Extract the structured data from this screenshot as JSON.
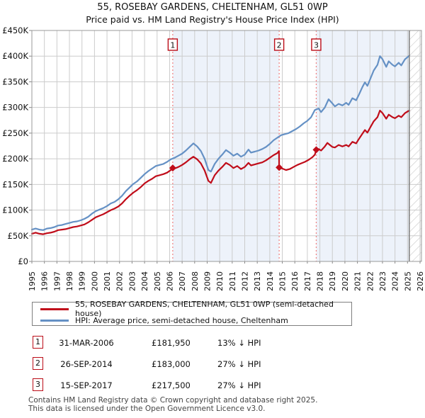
{
  "title": "55, ROSEBAY GARDENS, CHELTENHAM, GL51 0WP",
  "subtitle": "Price paid vs. HM Land Registry's House Price Index (HPI)",
  "chart_data": {
    "type": "line",
    "x_axis": {
      "start": 1995,
      "end": 2026,
      "tick_labels": [
        "1995",
        "1996",
        "1997",
        "1998",
        "1999",
        "2000",
        "2001",
        "2002",
        "2003",
        "2004",
        "2005",
        "2006",
        "2007",
        "2008",
        "2009",
        "2010",
        "2011",
        "2012",
        "2013",
        "2014",
        "2015",
        "2016",
        "2017",
        "2018",
        "2019",
        "2020",
        "2021",
        "2022",
        "2023",
        "2024",
        "2025",
        "2026"
      ]
    },
    "y_axis": {
      "max": 450,
      "tick_values": [
        0,
        50,
        100,
        150,
        200,
        250,
        300,
        350,
        400,
        450
      ],
      "tick_labels": [
        "£0",
        "£50K",
        "£100K",
        "£150K",
        "£200K",
        "£250K",
        "£300K",
        "£350K",
        "£400K",
        "£450K"
      ]
    },
    "grid": true,
    "legend_position": "bottom",
    "series": [
      {
        "name": "55, ROSEBAY GARDENS, CHELTENHAM, GL51 0WP (semi-detached house)",
        "color": "#c00d1a",
        "points": [
          [
            1995.0,
            54
          ],
          [
            1995.3,
            56
          ],
          [
            1995.6,
            54
          ],
          [
            1995.9,
            53
          ],
          [
            1996.2,
            55
          ],
          [
            1996.5,
            56
          ],
          [
            1996.8,
            58
          ],
          [
            1997.1,
            61
          ],
          [
            1997.4,
            62
          ],
          [
            1997.7,
            63
          ],
          [
            1998.0,
            65
          ],
          [
            1998.3,
            67
          ],
          [
            1998.6,
            68
          ],
          [
            1998.9,
            70
          ],
          [
            1999.2,
            72
          ],
          [
            1999.5,
            76
          ],
          [
            1999.8,
            81
          ],
          [
            2000.1,
            86
          ],
          [
            2000.4,
            89
          ],
          [
            2000.7,
            92
          ],
          [
            2001.0,
            96
          ],
          [
            2001.3,
            100
          ],
          [
            2001.6,
            103
          ],
          [
            2001.9,
            107
          ],
          [
            2002.2,
            113
          ],
          [
            2002.5,
            121
          ],
          [
            2002.8,
            128
          ],
          [
            2003.1,
            134
          ],
          [
            2003.4,
            139
          ],
          [
            2003.7,
            145
          ],
          [
            2004.0,
            152
          ],
          [
            2004.3,
            157
          ],
          [
            2004.6,
            161
          ],
          [
            2004.9,
            166
          ],
          [
            2005.2,
            168
          ],
          [
            2005.5,
            170
          ],
          [
            2005.8,
            173
          ],
          [
            2006.1,
            178
          ],
          [
            2006.25,
            182
          ],
          [
            2006.4,
            181
          ],
          [
            2006.7,
            184
          ],
          [
            2007.0,
            188
          ],
          [
            2007.3,
            193
          ],
          [
            2007.6,
            199
          ],
          [
            2007.9,
            204
          ],
          [
            2008.2,
            199
          ],
          [
            2008.5,
            191
          ],
          [
            2008.8,
            177
          ],
          [
            2009.1,
            157
          ],
          [
            2009.3,
            153
          ],
          [
            2009.6,
            168
          ],
          [
            2009.9,
            177
          ],
          [
            2010.2,
            184
          ],
          [
            2010.5,
            192
          ],
          [
            2010.8,
            188
          ],
          [
            2011.1,
            182
          ],
          [
            2011.4,
            186
          ],
          [
            2011.7,
            180
          ],
          [
            2012.0,
            184
          ],
          [
            2012.3,
            192
          ],
          [
            2012.5,
            187
          ],
          [
            2012.8,
            189
          ],
          [
            2013.1,
            191
          ],
          [
            2013.4,
            193
          ],
          [
            2013.7,
            197
          ],
          [
            2014.0,
            202
          ],
          [
            2014.3,
            207
          ],
          [
            2014.6,
            211
          ],
          [
            2014.74,
            215
          ],
          [
            2014.75,
            183
          ],
          [
            2015.0,
            181
          ],
          [
            2015.3,
            178
          ],
          [
            2015.6,
            180
          ],
          [
            2015.9,
            184
          ],
          [
            2016.2,
            188
          ],
          [
            2016.5,
            191
          ],
          [
            2016.8,
            194
          ],
          [
            2017.1,
            198
          ],
          [
            2017.4,
            203
          ],
          [
            2017.6,
            208
          ],
          [
            2017.71,
            217.5
          ],
          [
            2017.9,
            219
          ],
          [
            2018.1,
            216
          ],
          [
            2018.4,
            224
          ],
          [
            2018.6,
            231
          ],
          [
            2018.8,
            227
          ],
          [
            2019.0,
            223
          ],
          [
            2019.2,
            222
          ],
          [
            2019.5,
            227
          ],
          [
            2019.8,
            224
          ],
          [
            2020.1,
            227
          ],
          [
            2020.3,
            224
          ],
          [
            2020.6,
            233
          ],
          [
            2020.9,
            230
          ],
          [
            2021.1,
            238
          ],
          [
            2021.4,
            249
          ],
          [
            2021.6,
            256
          ],
          [
            2021.8,
            251
          ],
          [
            2022.0,
            260
          ],
          [
            2022.3,
            273
          ],
          [
            2022.6,
            281
          ],
          [
            2022.8,
            294
          ],
          [
            2023.0,
            289
          ],
          [
            2023.3,
            278
          ],
          [
            2023.5,
            286
          ],
          [
            2023.8,
            281
          ],
          [
            2024.0,
            279
          ],
          [
            2024.3,
            284
          ],
          [
            2024.5,
            281
          ],
          [
            2024.8,
            289
          ],
          [
            2025.0,
            292
          ],
          [
            2025.14,
            294
          ]
        ]
      },
      {
        "name": "HPI: Average price, semi-detached house, Cheltenham",
        "color": "#6591c5",
        "points": [
          [
            1995.0,
            62
          ],
          [
            1995.3,
            64
          ],
          [
            1995.6,
            62
          ],
          [
            1995.9,
            61
          ],
          [
            1996.2,
            64
          ],
          [
            1996.5,
            65
          ],
          [
            1996.8,
            67
          ],
          [
            1997.1,
            70
          ],
          [
            1997.4,
            71
          ],
          [
            1997.7,
            73
          ],
          [
            1998.0,
            75
          ],
          [
            1998.3,
            77
          ],
          [
            1998.6,
            78
          ],
          [
            1998.9,
            80
          ],
          [
            1999.2,
            83
          ],
          [
            1999.5,
            87
          ],
          [
            1999.8,
            93
          ],
          [
            2000.1,
            98
          ],
          [
            2000.4,
            101
          ],
          [
            2000.7,
            104
          ],
          [
            2001.0,
            108
          ],
          [
            2001.3,
            113
          ],
          [
            2001.6,
            116
          ],
          [
            2001.9,
            121
          ],
          [
            2002.2,
            128
          ],
          [
            2002.5,
            137
          ],
          [
            2002.8,
            144
          ],
          [
            2003.1,
            151
          ],
          [
            2003.4,
            156
          ],
          [
            2003.7,
            163
          ],
          [
            2004.0,
            170
          ],
          [
            2004.3,
            176
          ],
          [
            2004.6,
            181
          ],
          [
            2004.9,
            186
          ],
          [
            2005.2,
            188
          ],
          [
            2005.5,
            190
          ],
          [
            2005.8,
            194
          ],
          [
            2006.1,
            199
          ],
          [
            2006.4,
            202
          ],
          [
            2006.7,
            206
          ],
          [
            2007.0,
            210
          ],
          [
            2007.3,
            216
          ],
          [
            2007.6,
            223
          ],
          [
            2007.9,
            230
          ],
          [
            2008.2,
            224
          ],
          [
            2008.5,
            215
          ],
          [
            2008.8,
            200
          ],
          [
            2009.1,
            178
          ],
          [
            2009.3,
            175
          ],
          [
            2009.6,
            190
          ],
          [
            2009.9,
            200
          ],
          [
            2010.2,
            208
          ],
          [
            2010.5,
            217
          ],
          [
            2010.8,
            212
          ],
          [
            2011.1,
            206
          ],
          [
            2011.4,
            210
          ],
          [
            2011.7,
            204
          ],
          [
            2012.0,
            208
          ],
          [
            2012.3,
            218
          ],
          [
            2012.5,
            212
          ],
          [
            2012.8,
            214
          ],
          [
            2013.1,
            216
          ],
          [
            2013.4,
            219
          ],
          [
            2013.7,
            223
          ],
          [
            2014.0,
            229
          ],
          [
            2014.3,
            236
          ],
          [
            2014.6,
            241
          ],
          [
            2014.9,
            246
          ],
          [
            2015.2,
            248
          ],
          [
            2015.5,
            250
          ],
          [
            2015.8,
            254
          ],
          [
            2016.1,
            258
          ],
          [
            2016.4,
            263
          ],
          [
            2016.7,
            269
          ],
          [
            2017.0,
            274
          ],
          [
            2017.3,
            281
          ],
          [
            2017.6,
            295
          ],
          [
            2017.9,
            298
          ],
          [
            2018.1,
            291
          ],
          [
            2018.4,
            300
          ],
          [
            2018.7,
            316
          ],
          [
            2019.0,
            308
          ],
          [
            2019.2,
            302
          ],
          [
            2019.5,
            307
          ],
          [
            2019.8,
            304
          ],
          [
            2020.1,
            309
          ],
          [
            2020.3,
            305
          ],
          [
            2020.6,
            318
          ],
          [
            2020.9,
            314
          ],
          [
            2021.1,
            324
          ],
          [
            2021.4,
            340
          ],
          [
            2021.6,
            349
          ],
          [
            2021.8,
            342
          ],
          [
            2022.0,
            354
          ],
          [
            2022.3,
            372
          ],
          [
            2022.6,
            383
          ],
          [
            2022.8,
            400
          ],
          [
            2023.0,
            394
          ],
          [
            2023.3,
            379
          ],
          [
            2023.5,
            390
          ],
          [
            2023.8,
            383
          ],
          [
            2024.0,
            380
          ],
          [
            2024.3,
            387
          ],
          [
            2024.5,
            382
          ],
          [
            2024.8,
            394
          ],
          [
            2025.0,
            398
          ],
          [
            2025.14,
            401
          ]
        ]
      }
    ],
    "sales": [
      {
        "label": "1",
        "year": 2006.25,
        "price_k": 181.95
      },
      {
        "label": "2",
        "year": 2014.75,
        "price_k": 183.0
      },
      {
        "label": "3",
        "year": 2017.71,
        "price_k": 217.5
      }
    ],
    "shaded_bands": [
      [
        2006.25,
        2014.75
      ],
      [
        2017.71,
        2025.14
      ]
    ],
    "data_end_year": 2025.14,
    "colors": {
      "band": "#edf2fa",
      "grid": "#cccccc",
      "chart_border": "#999999",
      "tick": "#888888",
      "sale_dotted": "#f07f7f",
      "sale_marker": "#c00d1a",
      "marker_box_border": "#bb0d18",
      "data_end_line": "#7a7a7a",
      "hatch_line": "#c8c8c8"
    }
  },
  "legend": [
    {
      "label": "55, ROSEBAY GARDENS, CHELTENHAM, GL51 0WP (semi-detached house)",
      "color": "#c00d1a"
    },
    {
      "label": "HPI: Average price, semi-detached house, Cheltenham",
      "color": "#6591c5"
    }
  ],
  "sales_table": [
    {
      "num": "1",
      "date": "31-MAR-2006",
      "price": "£181,950",
      "vs_hpi": "13% ↓ HPI"
    },
    {
      "num": "2",
      "date": "26-SEP-2014",
      "price": "£183,000",
      "vs_hpi": "27% ↓ HPI"
    },
    {
      "num": "3",
      "date": "15-SEP-2017",
      "price": "£217,500",
      "vs_hpi": "27% ↓ HPI"
    }
  ],
  "footer": {
    "line1": "Contains HM Land Registry data © Crown copyright and database right 2025.",
    "line2": "This data is licensed under the Open Government Licence v3.0."
  }
}
